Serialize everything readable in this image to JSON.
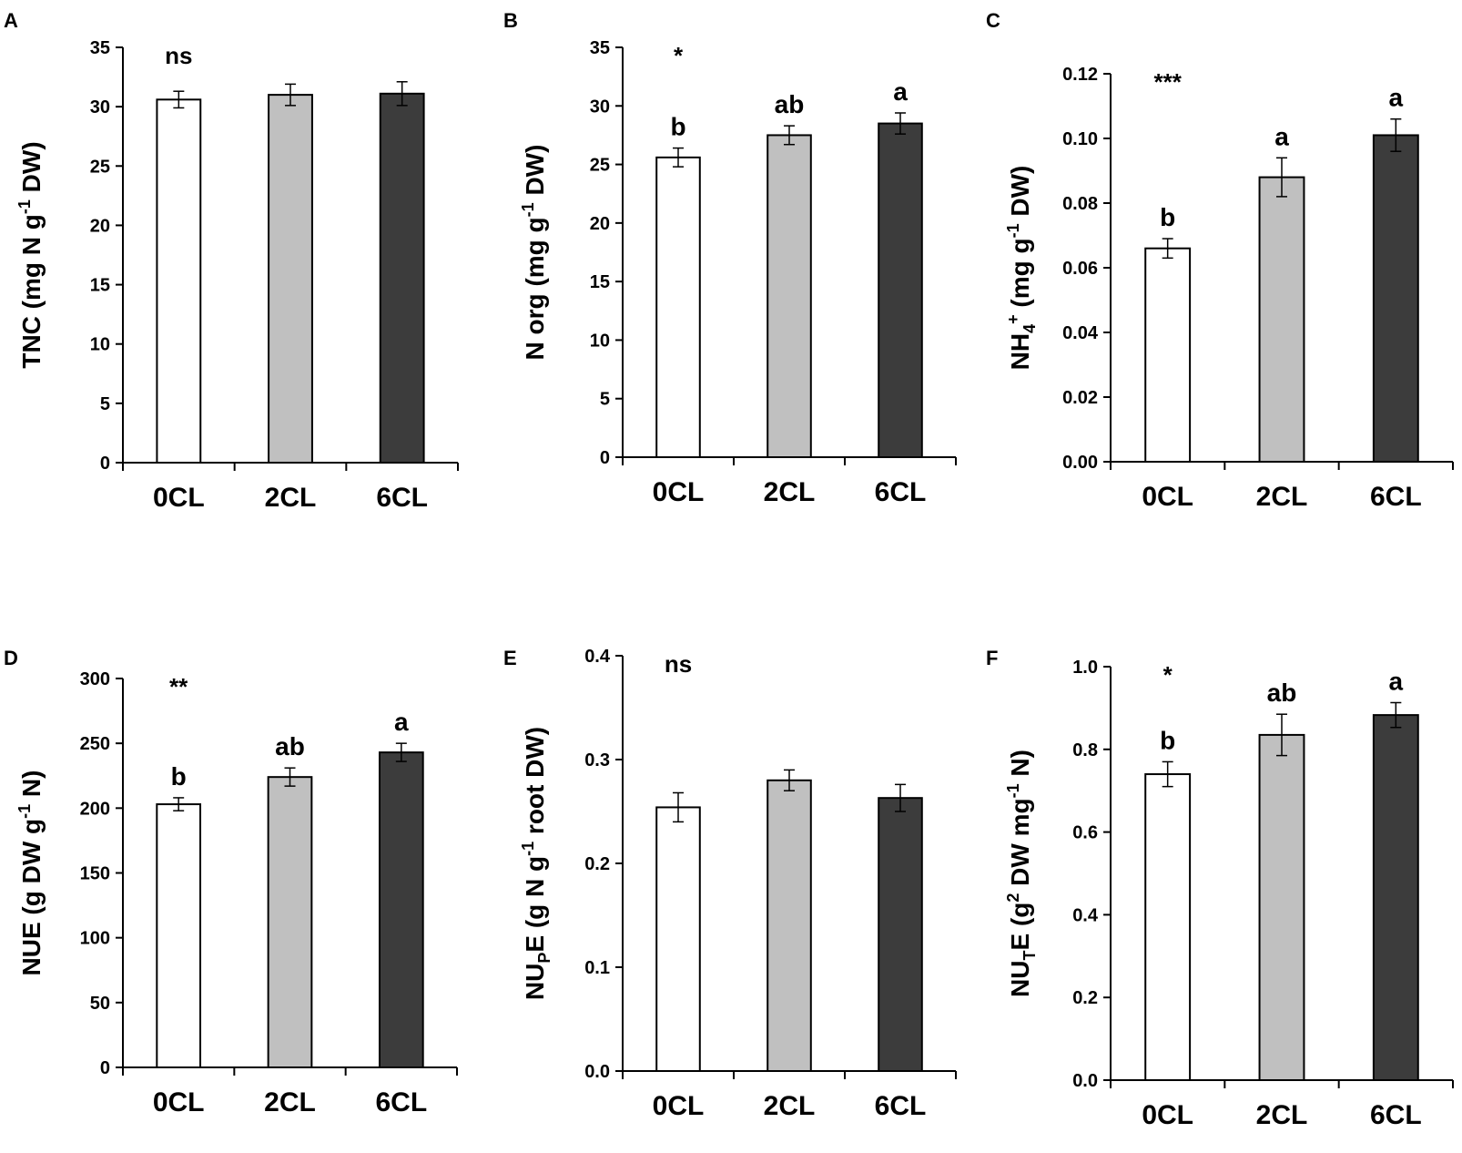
{
  "colors": {
    "bar_0CL": "#ffffff",
    "bar_2CL": "#c0c0c0",
    "bar_6CL": "#3c3c3c",
    "stroke": "#000000"
  },
  "chart_data": [
    {
      "panel": "A",
      "type": "bar",
      "categories": [
        "0CL",
        "2CL",
        "6CL"
      ],
      "values": [
        30.6,
        31.0,
        31.1
      ],
      "errors": [
        0.7,
        0.9,
        1.0
      ],
      "letters": [
        "",
        "",
        ""
      ],
      "significance": "ns",
      "ylabel_parts": [
        {
          "t": "TNC (mg N g"
        },
        {
          "t": "-1",
          "sup": true
        },
        {
          "t": " DW)"
        }
      ],
      "ylim": [
        0,
        35
      ],
      "yticks": [
        0,
        5,
        10,
        15,
        20,
        25,
        30,
        35
      ],
      "tick_decimals": 0
    },
    {
      "panel": "B",
      "type": "bar",
      "categories": [
        "0CL",
        "2CL",
        "6CL"
      ],
      "values": [
        25.6,
        27.5,
        28.5
      ],
      "errors": [
        0.8,
        0.8,
        0.9
      ],
      "letters": [
        "b",
        "ab",
        "a"
      ],
      "significance": "*",
      "ylabel_parts": [
        {
          "t": "N org (mg g"
        },
        {
          "t": "-1",
          "sup": true
        },
        {
          "t": " DW)"
        }
      ],
      "ylim": [
        0,
        35
      ],
      "yticks": [
        0,
        5,
        10,
        15,
        20,
        25,
        30,
        35
      ],
      "tick_decimals": 0
    },
    {
      "panel": "C",
      "type": "bar",
      "categories": [
        "0CL",
        "2CL",
        "6CL"
      ],
      "values": [
        0.066,
        0.088,
        0.101
      ],
      "errors": [
        0.003,
        0.006,
        0.005
      ],
      "letters": [
        "b",
        "a",
        "a"
      ],
      "significance": "***",
      "ylabel_parts": [
        {
          "t": "NH"
        },
        {
          "t": "4",
          "sub": true
        },
        {
          "t": "+",
          "sup": true
        },
        {
          "t": " (mg g"
        },
        {
          "t": "-1",
          "sup": true
        },
        {
          "t": " DW)"
        }
      ],
      "ylim": [
        0,
        0.12
      ],
      "yticks": [
        0,
        0.02,
        0.04,
        0.06,
        0.08,
        0.1,
        0.12
      ],
      "tick_decimals": 2
    },
    {
      "panel": "D",
      "type": "bar",
      "categories": [
        "0CL",
        "2CL",
        "6CL"
      ],
      "values": [
        203,
        224,
        243
      ],
      "errors": [
        5,
        7,
        7
      ],
      "letters": [
        "b",
        "ab",
        "a"
      ],
      "significance": "**",
      "ylabel_parts": [
        {
          "t": "NUE (g DW g"
        },
        {
          "t": "-1",
          "sup": true
        },
        {
          "t": " N)"
        }
      ],
      "ylim": [
        0,
        300
      ],
      "yticks": [
        0,
        50,
        100,
        150,
        200,
        250,
        300
      ],
      "tick_decimals": 0
    },
    {
      "panel": "E",
      "type": "bar",
      "categories": [
        "0CL",
        "2CL",
        "6CL"
      ],
      "values": [
        0.254,
        0.28,
        0.263
      ],
      "errors": [
        0.014,
        0.01,
        0.013
      ],
      "letters": [
        "",
        "",
        ""
      ],
      "significance": "ns",
      "ylabel_parts": [
        {
          "t": "NU"
        },
        {
          "t": "P",
          "sub": true
        },
        {
          "t": "E (g N g"
        },
        {
          "t": "-1",
          "sup": true
        },
        {
          "t": " root DW)"
        }
      ],
      "ylim": [
        0,
        0.4
      ],
      "yticks": [
        0,
        0.1,
        0.2,
        0.3,
        0.4
      ],
      "tick_decimals": 1
    },
    {
      "panel": "F",
      "type": "bar",
      "categories": [
        "0CL",
        "2CL",
        "6CL"
      ],
      "values": [
        0.74,
        0.835,
        0.883
      ],
      "errors": [
        0.03,
        0.05,
        0.03
      ],
      "letters": [
        "b",
        "ab",
        "a"
      ],
      "significance": "*",
      "ylabel_parts": [
        {
          "t": "NU"
        },
        {
          "t": "T",
          "sub": true
        },
        {
          "t": "E (g"
        },
        {
          "t": "2",
          "sup": true
        },
        {
          "t": " DW mg"
        },
        {
          "t": "-1",
          "sup": true
        },
        {
          "t": " N)"
        }
      ],
      "ylim": [
        0,
        1.0
      ],
      "yticks": [
        0,
        0.2,
        0.4,
        0.6,
        0.8,
        1.0
      ],
      "tick_decimals": 1
    }
  ]
}
